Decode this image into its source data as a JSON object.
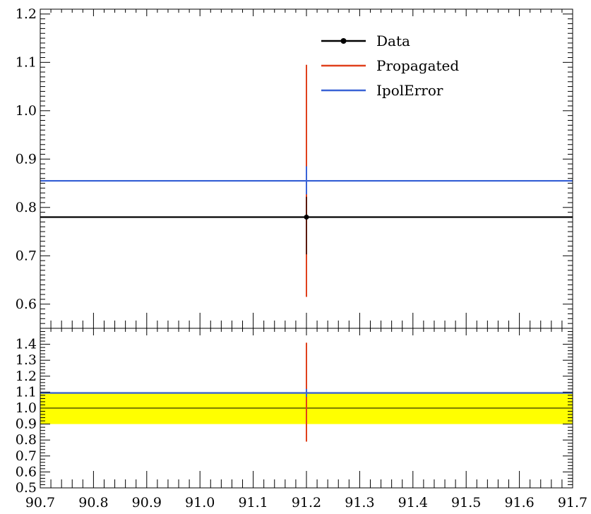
{
  "chart_data": [
    {
      "panel": "main",
      "type": "line",
      "xlim": [
        90.7,
        91.7
      ],
      "ylim": [
        0.55,
        1.21
      ],
      "y_ticks": [
        0.6,
        0.7,
        0.8,
        0.9,
        1.0,
        1.1,
        1.2
      ],
      "y_tick_labels": [
        "0.6",
        "0.7",
        "0.8",
        "0.9",
        "1.0",
        "1.1",
        "1.2"
      ],
      "legend_position": "top-right",
      "series": [
        {
          "name": "Data",
          "color": "#000000",
          "style": "line-with-marker",
          "y_value": 0.78,
          "point": {
            "x": 91.2,
            "y": 0.78
          },
          "errbar": [
            0.703,
            0.822
          ]
        },
        {
          "name": "Propagated",
          "color": "#e0401c",
          "style": "errbar",
          "x": 91.2,
          "errbar": [
            0.615,
            1.095
          ]
        },
        {
          "name": "IpolError",
          "color": "#3a63d6",
          "style": "line",
          "y_value": 0.855,
          "errbar": [
            0.827,
            0.885
          ]
        }
      ]
    },
    {
      "panel": "ratio",
      "type": "line",
      "xlim": [
        90.7,
        91.7
      ],
      "ylim": [
        0.5,
        1.5
      ],
      "x_ticks": [
        90.7,
        90.8,
        90.9,
        91.0,
        91.1,
        91.2,
        91.3,
        91.4,
        91.5,
        91.6,
        91.7
      ],
      "x_tick_labels": [
        "90.7",
        "90.8",
        "90.9",
        "91.0",
        "91.1",
        "91.2",
        "91.3",
        "91.4",
        "91.5",
        "91.6",
        "91.7"
      ],
      "y_ticks": [
        0.5,
        0.6,
        0.7,
        0.8,
        0.9,
        1.0,
        1.1,
        1.2,
        1.3,
        1.4
      ],
      "y_tick_labels": [
        "0.5",
        "0.6",
        "0.7",
        "0.8",
        "0.9",
        "1.0",
        "1.1",
        "1.2",
        "1.3",
        "1.4"
      ],
      "band": {
        "color": "#ffff00",
        "range": [
          0.9,
          1.1
        ]
      },
      "reference_line": 1.0,
      "series": [
        {
          "name": "Propagated",
          "color": "#e0401c",
          "x": 91.2,
          "errbar": [
            0.79,
            1.41
          ]
        },
        {
          "name": "IpolError",
          "color": "#3a63d6",
          "y_value": 1.095,
          "errbar": [
            1.07,
            1.12
          ]
        }
      ]
    }
  ]
}
